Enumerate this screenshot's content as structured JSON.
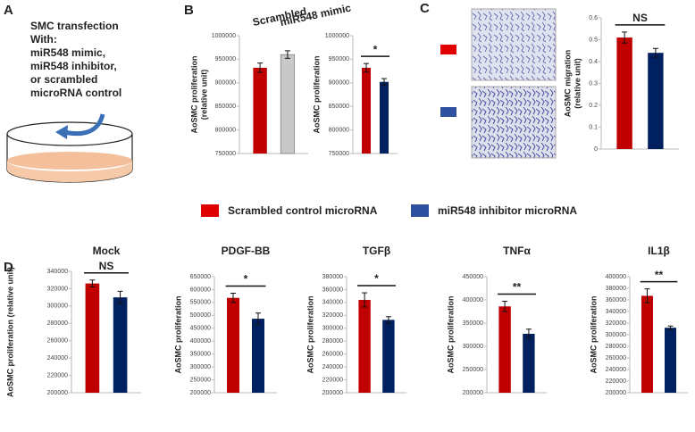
{
  "panels": [
    "A",
    "B",
    "C",
    "D"
  ],
  "panel_a": {
    "lines": [
      "SMC transfection",
      "With:",
      "miR548 mimic,",
      "miR548 inhibitor,",
      "or scrambled",
      "microRNA control"
    ]
  },
  "legend": [
    {
      "name": "Scrambled control microRNA",
      "color": "#e00000"
    },
    {
      "name": "miR548 inhibitor microRNA",
      "color": "#2f4f9f"
    }
  ],
  "chart_data": [
    {
      "type": "bar",
      "categories": [
        "Scrambled",
        "miR548 mimic"
      ],
      "ylabel": [
        "AoSMC proliferation",
        "(relative unit)"
      ],
      "values": [
        932000,
        960000
      ],
      "errors": [
        10000,
        8000
      ],
      "colors": [
        "#c00000",
        "#c8c8c8"
      ],
      "ylim": [
        750000,
        1000000
      ],
      "yticks": [
        750000,
        800000,
        850000,
        900000,
        950000,
        1000000
      ]
    },
    {
      "type": "bar",
      "ylabel": [
        "AoSMC proliferation"
      ],
      "values": [
        932000,
        902000
      ],
      "errors": [
        9000,
        7000
      ],
      "colors": [
        "#c00000",
        "#002060"
      ],
      "ylim": [
        750000,
        1000000
      ],
      "yticks": [
        750000,
        800000,
        850000,
        900000,
        950000,
        1000000
      ],
      "annotation": "*"
    },
    {
      "type": "bar",
      "ylabel": [
        "AoSMC migration",
        "(relative unit)"
      ],
      "values": [
        0.51,
        0.44
      ],
      "errors": [
        0.025,
        0.02
      ],
      "colors": [
        "#c00000",
        "#002060"
      ],
      "ylim": [
        0,
        0.6
      ],
      "yticks": [
        0,
        0.1,
        0.2,
        0.3,
        0.4,
        0.5,
        0.6
      ],
      "annotation": "NS"
    },
    {
      "type": "bar",
      "title": "Mock",
      "ylabel": [
        "AoSMC proliferation (relative unit)"
      ],
      "values": [
        326000,
        310000
      ],
      "errors": [
        4000,
        7000
      ],
      "colors": [
        "#c00000",
        "#002060"
      ],
      "ylim": [
        200000,
        340000
      ],
      "yticks": [
        200000,
        220000,
        240000,
        260000,
        280000,
        300000,
        320000,
        340000
      ],
      "annotation": "NS"
    },
    {
      "type": "bar",
      "title": "PDGF-BB",
      "ylabel": [
        "AoSMC proliferation"
      ],
      "values": [
        568000,
        487000
      ],
      "errors": [
        18000,
        22000
      ],
      "colors": [
        "#c00000",
        "#002060"
      ],
      "ylim": [
        200000,
        650000
      ],
      "yticks": [
        200000,
        250000,
        300000,
        350000,
        400000,
        450000,
        500000,
        550000,
        600000,
        650000
      ],
      "annotation": "*"
    },
    {
      "type": "bar",
      "title": "TGFβ",
      "ylabel": [
        "AoSMC proliferation"
      ],
      "values": [
        344000,
        313000
      ],
      "errors": [
        11000,
        5000
      ],
      "colors": [
        "#c00000",
        "#002060"
      ],
      "ylim": [
        200000,
        380000
      ],
      "yticks": [
        200000,
        220000,
        240000,
        260000,
        280000,
        300000,
        320000,
        340000,
        360000,
        380000
      ],
      "annotation": "*"
    },
    {
      "type": "bar",
      "title": "TNFα",
      "ylabel": [
        "AoSMC proliferation"
      ],
      "values": [
        386000,
        327000
      ],
      "errors": [
        11000,
        10000
      ],
      "colors": [
        "#c00000",
        "#002060"
      ],
      "ylim": [
        200000,
        450000
      ],
      "yticks": [
        200000,
        250000,
        300000,
        350000,
        400000,
        450000
      ],
      "annotation": "**"
    },
    {
      "type": "bar",
      "title": "IL1β",
      "ylabel": [
        "AoSMC proliferation"
      ],
      "values": [
        367000,
        312000
      ],
      "errors": [
        12000,
        3000
      ],
      "colors": [
        "#c00000",
        "#002060"
      ],
      "ylim": [
        200000,
        400000
      ],
      "yticks": [
        200000,
        220000,
        240000,
        260000,
        280000,
        300000,
        320000,
        340000,
        360000,
        380000,
        400000
      ],
      "annotation": "**"
    }
  ]
}
